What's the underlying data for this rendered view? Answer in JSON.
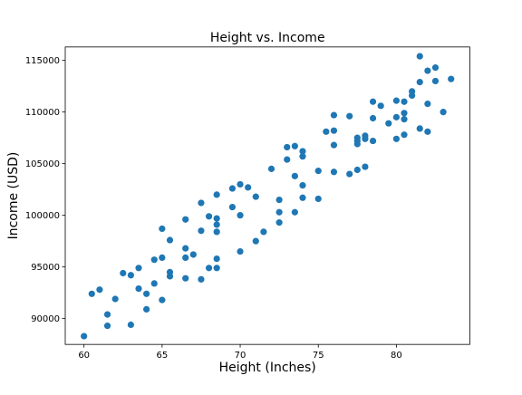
{
  "chart_data": {
    "type": "scatter",
    "title": "Height vs. Income",
    "xlabel": "Height (Inches)",
    "ylabel": "Income (USD)",
    "xlim": [
      58.8,
      84.7
    ],
    "ylim": [
      87500,
      116300
    ],
    "xticks": [
      60,
      65,
      70,
      75,
      80
    ],
    "yticks": [
      90000,
      95000,
      100000,
      105000,
      110000,
      115000
    ],
    "grid": false,
    "legend": "none",
    "marker_color": "#1f77b4",
    "points": [
      [
        60.0,
        88300
      ],
      [
        60.5,
        92400
      ],
      [
        61.0,
        92800
      ],
      [
        61.5,
        90400
      ],
      [
        61.5,
        89300
      ],
      [
        62.0,
        91900
      ],
      [
        62.5,
        94400
      ],
      [
        63.0,
        94200
      ],
      [
        63.0,
        89400
      ],
      [
        63.5,
        94900
      ],
      [
        63.5,
        92900
      ],
      [
        64.0,
        92400
      ],
      [
        64.0,
        90900
      ],
      [
        64.5,
        93400
      ],
      [
        64.5,
        95700
      ],
      [
        65.0,
        95900
      ],
      [
        65.0,
        98700
      ],
      [
        65.0,
        91800
      ],
      [
        65.5,
        97600
      ],
      [
        65.5,
        94500
      ],
      [
        65.5,
        94100
      ],
      [
        66.5,
        99600
      ],
      [
        66.5,
        96800
      ],
      [
        66.5,
        95900
      ],
      [
        66.5,
        93900
      ],
      [
        67.0,
        96200
      ],
      [
        67.5,
        93800
      ],
      [
        67.5,
        98500
      ],
      [
        67.5,
        101200
      ],
      [
        68.0,
        94900
      ],
      [
        68.0,
        99900
      ],
      [
        68.5,
        102000
      ],
      [
        68.5,
        99700
      ],
      [
        68.5,
        99100
      ],
      [
        68.5,
        98400
      ],
      [
        68.5,
        95800
      ],
      [
        68.5,
        94900
      ],
      [
        69.5,
        102600
      ],
      [
        69.5,
        100800
      ],
      [
        70.0,
        103000
      ],
      [
        70.0,
        100000
      ],
      [
        70.0,
        96500
      ],
      [
        70.5,
        102700
      ],
      [
        71.0,
        101800
      ],
      [
        71.0,
        97500
      ],
      [
        71.5,
        98400
      ],
      [
        72.0,
        104500
      ],
      [
        72.5,
        101500
      ],
      [
        72.5,
        100300
      ],
      [
        72.5,
        99300
      ],
      [
        73.0,
        106600
      ],
      [
        73.0,
        105400
      ],
      [
        73.5,
        106700
      ],
      [
        73.5,
        103800
      ],
      [
        73.5,
        100300
      ],
      [
        74.0,
        106200
      ],
      [
        74.0,
        105700
      ],
      [
        74.0,
        102900
      ],
      [
        74.0,
        101700
      ],
      [
        75.0,
        104300
      ],
      [
        75.0,
        101600
      ],
      [
        75.5,
        108100
      ],
      [
        76.0,
        109700
      ],
      [
        76.0,
        108200
      ],
      [
        76.0,
        106800
      ],
      [
        76.0,
        104200
      ],
      [
        77.0,
        109600
      ],
      [
        77.0,
        104000
      ],
      [
        77.5,
        107500
      ],
      [
        77.5,
        107200
      ],
      [
        77.5,
        106900
      ],
      [
        77.5,
        104400
      ],
      [
        78.0,
        107700
      ],
      [
        78.0,
        107400
      ],
      [
        78.0,
        104700
      ],
      [
        78.5,
        111000
      ],
      [
        78.5,
        109400
      ],
      [
        78.5,
        107200
      ],
      [
        79.0,
        110600
      ],
      [
        79.5,
        108900
      ],
      [
        80.0,
        111100
      ],
      [
        80.0,
        109500
      ],
      [
        80.0,
        107400
      ],
      [
        80.5,
        111000
      ],
      [
        80.5,
        109900
      ],
      [
        80.5,
        109300
      ],
      [
        80.5,
        107800
      ],
      [
        81.0,
        112000
      ],
      [
        81.0,
        111600
      ],
      [
        81.5,
        115400
      ],
      [
        81.5,
        112900
      ],
      [
        81.5,
        108400
      ],
      [
        82.0,
        114000
      ],
      [
        82.0,
        110800
      ],
      [
        82.0,
        108100
      ],
      [
        82.5,
        114300
      ],
      [
        82.5,
        113000
      ],
      [
        83.0,
        110000
      ],
      [
        83.5,
        113200
      ]
    ]
  }
}
